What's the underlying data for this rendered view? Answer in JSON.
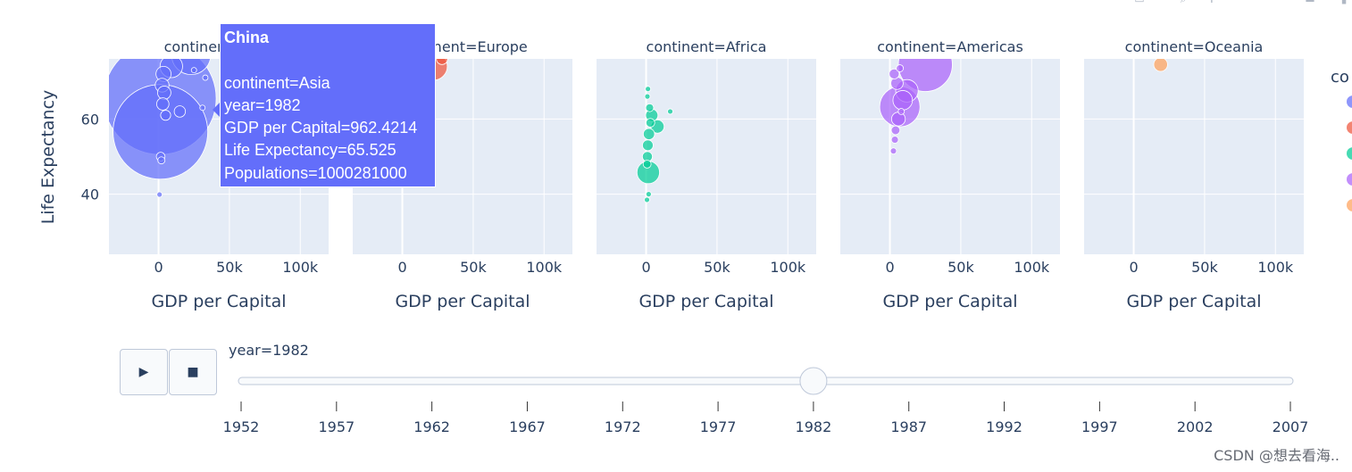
{
  "chart_data": {
    "type": "scatter",
    "subtype": "faceted bubble chart (animation frame)",
    "xlabel": "GDP per Capital",
    "ylabel": "Life Expectancy",
    "xlim": [
      -35000,
      120000
    ],
    "ylim": [
      24,
      76
    ],
    "x_ticks": [
      0,
      50000,
      100000
    ],
    "x_tick_labels": [
      "0",
      "50k",
      "100k"
    ],
    "y_ticks": [
      40,
      60
    ],
    "y_tick_labels": [
      "40",
      "60"
    ],
    "grid": true,
    "legend_title": "co",
    "legend_placement": "right",
    "facets": [
      {
        "title": "continent=Asia",
        "color": "#636efa",
        "points": [
          {
            "x": 962,
            "y": 65.5,
            "size": 1000
          },
          {
            "x": 1300,
            "y": 56.6,
            "size": 708
          },
          {
            "x": 23000,
            "y": 77,
            "size": 120
          },
          {
            "x": 9000,
            "y": 74,
            "size": 40
          },
          {
            "x": 3500,
            "y": 72,
            "size": 18
          },
          {
            "x": 2500,
            "y": 69,
            "size": 15
          },
          {
            "x": 4000,
            "y": 67,
            "size": 14
          },
          {
            "x": 3000,
            "y": 64,
            "size": 12
          },
          {
            "x": 15000,
            "y": 62,
            "size": 10
          },
          {
            "x": 5000,
            "y": 61,
            "size": 8
          },
          {
            "x": 1500,
            "y": 50,
            "size": 6
          },
          {
            "x": 2000,
            "y": 49,
            "size": 4
          },
          {
            "x": 700,
            "y": 39.9,
            "size": 2
          },
          {
            "x": 25000,
            "y": 73,
            "size": 2
          },
          {
            "x": 33000,
            "y": 71,
            "size": 2
          },
          {
            "x": 31000,
            "y": 63,
            "size": 2
          }
        ]
      },
      {
        "title": "continent=Europe",
        "color": "#ef553b",
        "points": [
          {
            "x": 22000,
            "y": 74,
            "size": 60
          },
          {
            "x": 28000,
            "y": 76,
            "size": 10
          }
        ]
      },
      {
        "title": "continent=Africa",
        "color": "#00cc96",
        "points": [
          {
            "x": 1500,
            "y": 45.8,
            "size": 40
          },
          {
            "x": 8000,
            "y": 58,
            "size": 14
          },
          {
            "x": 4000,
            "y": 61,
            "size": 12
          },
          {
            "x": 2000,
            "y": 56,
            "size": 10
          },
          {
            "x": 1200,
            "y": 53,
            "size": 9
          },
          {
            "x": 900,
            "y": 50,
            "size": 8
          },
          {
            "x": 3000,
            "y": 59,
            "size": 6
          },
          {
            "x": 2500,
            "y": 63,
            "size": 5
          },
          {
            "x": 700,
            "y": 48,
            "size": 5
          },
          {
            "x": 17000,
            "y": 62,
            "size": 2
          },
          {
            "x": 1800,
            "y": 40,
            "size": 2
          },
          {
            "x": 600,
            "y": 38.5,
            "size": 1
          },
          {
            "x": 900,
            "y": 66,
            "size": 1
          },
          {
            "x": 1300,
            "y": 68,
            "size": 1
          }
        ]
      },
      {
        "title": "continent=Americas",
        "color": "#ab63fa",
        "points": [
          {
            "x": 25000,
            "y": 74.5,
            "size": 230
          },
          {
            "x": 7000,
            "y": 63.3,
            "size": 128
          },
          {
            "x": 12000,
            "y": 67.5,
            "size": 40
          },
          {
            "x": 9000,
            "y": 65,
            "size": 30
          },
          {
            "x": 6000,
            "y": 60,
            "size": 15
          },
          {
            "x": 5000,
            "y": 69.5,
            "size": 12
          },
          {
            "x": 3000,
            "y": 72,
            "size": 8
          },
          {
            "x": 4000,
            "y": 57,
            "size": 6
          },
          {
            "x": 3500,
            "y": 54.5,
            "size": 4
          },
          {
            "x": 2500,
            "y": 51.5,
            "size": 3
          },
          {
            "x": 7000,
            "y": 73.5,
            "size": 4
          },
          {
            "x": 8000,
            "y": 62,
            "size": 3
          }
        ]
      },
      {
        "title": "continent=Oceania",
        "color": "#ffa15a",
        "points": [
          {
            "x": 19000,
            "y": 74.5,
            "size": 15
          }
        ]
      }
    ]
  },
  "tooltip": {
    "title": "China",
    "lines": [
      "continent=Asia",
      "year=1982",
      "GDP per Capital=962.4214",
      "Life Expectancy=65.525",
      "Populations=1000281000"
    ]
  },
  "legend": {
    "title": "co",
    "colors": [
      "#636efa",
      "#ef553b",
      "#00cc96",
      "#ab63fa",
      "#ffa15a"
    ]
  },
  "slider": {
    "current_label": "year=1982",
    "value": "1982",
    "steps": [
      "1952",
      "1957",
      "1962",
      "1967",
      "1972",
      "1977",
      "1982",
      "1987",
      "1992",
      "1997",
      "2002",
      "2007"
    ]
  },
  "controls": {
    "play_icon": "play-icon",
    "stop_icon": "stop-icon"
  },
  "watermark": "CSDN @想去看海.."
}
